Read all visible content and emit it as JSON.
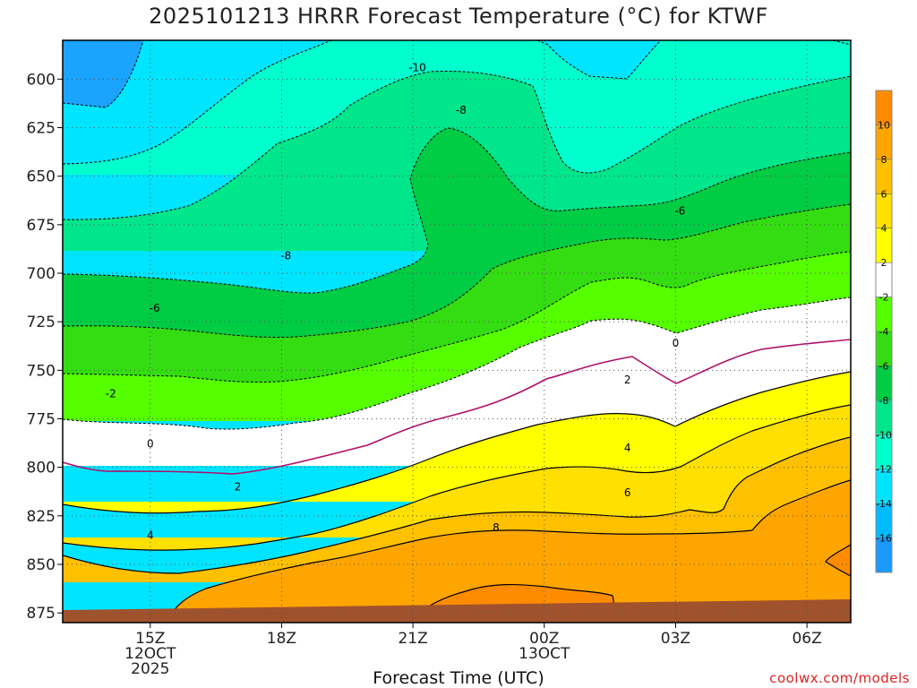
{
  "title": "2025101213 HRRR Forecast Temperature (°C) for KTWF",
  "credit": "coolwx.com/models",
  "chart_data": {
    "type": "contour",
    "title": "2025101213 HRRR Forecast Temperature (°C) for KTWF",
    "xlabel": "Forecast Time (UTC)",
    "ylabel": "",
    "x_range_hours_utc": [
      13,
      31
    ],
    "y_range_hpa": [
      880,
      580
    ],
    "y_ticks": [
      600,
      625,
      650,
      675,
      700,
      725,
      750,
      775,
      800,
      825,
      850,
      875
    ],
    "x_ticks": [
      {
        "hour": 15,
        "lines": [
          "15Z",
          "12OCT",
          "2025"
        ]
      },
      {
        "hour": 18,
        "lines": [
          "18Z"
        ]
      },
      {
        "hour": 21,
        "lines": [
          "21Z"
        ]
      },
      {
        "hour": 24,
        "lines": [
          "00Z",
          "13OCT"
        ]
      },
      {
        "hour": 27,
        "lines": [
          "03Z"
        ]
      },
      {
        "hour": 30,
        "lines": [
          "06Z"
        ]
      }
    ],
    "grid": true,
    "legend": "right colorbar",
    "colorbar": {
      "labels": [
        10,
        8,
        6,
        4,
        2,
        -2,
        -4,
        -6,
        -8,
        -10,
        -12,
        -14,
        -16
      ],
      "colors": [
        "#ff8c00",
        "#ffa500",
        "#ffc000",
        "#ffe000",
        "#ffff00",
        "#ffffff",
        "#55ff00",
        "#33dd11",
        "#00cc44",
        "#00e68a",
        "#00ffcc",
        "#00e5ff",
        "#00bbff",
        "#1a99ff"
      ]
    },
    "contour_labels": [
      {
        "value": "-10",
        "hour": 21.1,
        "hpa": 594
      },
      {
        "value": "-8",
        "hour": 22.1,
        "hpa": 616
      },
      {
        "value": "-6",
        "hour": 27.1,
        "hpa": 668
      },
      {
        "value": "-8",
        "hour": 18.1,
        "hpa": 691
      },
      {
        "value": "-6",
        "hour": 15.1,
        "hpa": 718
      },
      {
        "value": "-2",
        "hour": 14.1,
        "hpa": 762
      },
      {
        "value": "0",
        "hour": 15.0,
        "hpa": 788
      },
      {
        "value": "0",
        "hour": 27.0,
        "hpa": 736
      },
      {
        "value": "2",
        "hour": 25.9,
        "hpa": 755
      },
      {
        "value": "2",
        "hour": 17.0,
        "hpa": 810
      },
      {
        "value": "4",
        "hour": 25.9,
        "hpa": 790
      },
      {
        "value": "4",
        "hour": 15.0,
        "hpa": 835
      },
      {
        "value": "6",
        "hour": 25.9,
        "hpa": 813
      },
      {
        "value": "8",
        "hour": 22.9,
        "hpa": 831
      }
    ],
    "terrain": {
      "color": "#a0522d",
      "top_hpa": 874
    }
  }
}
